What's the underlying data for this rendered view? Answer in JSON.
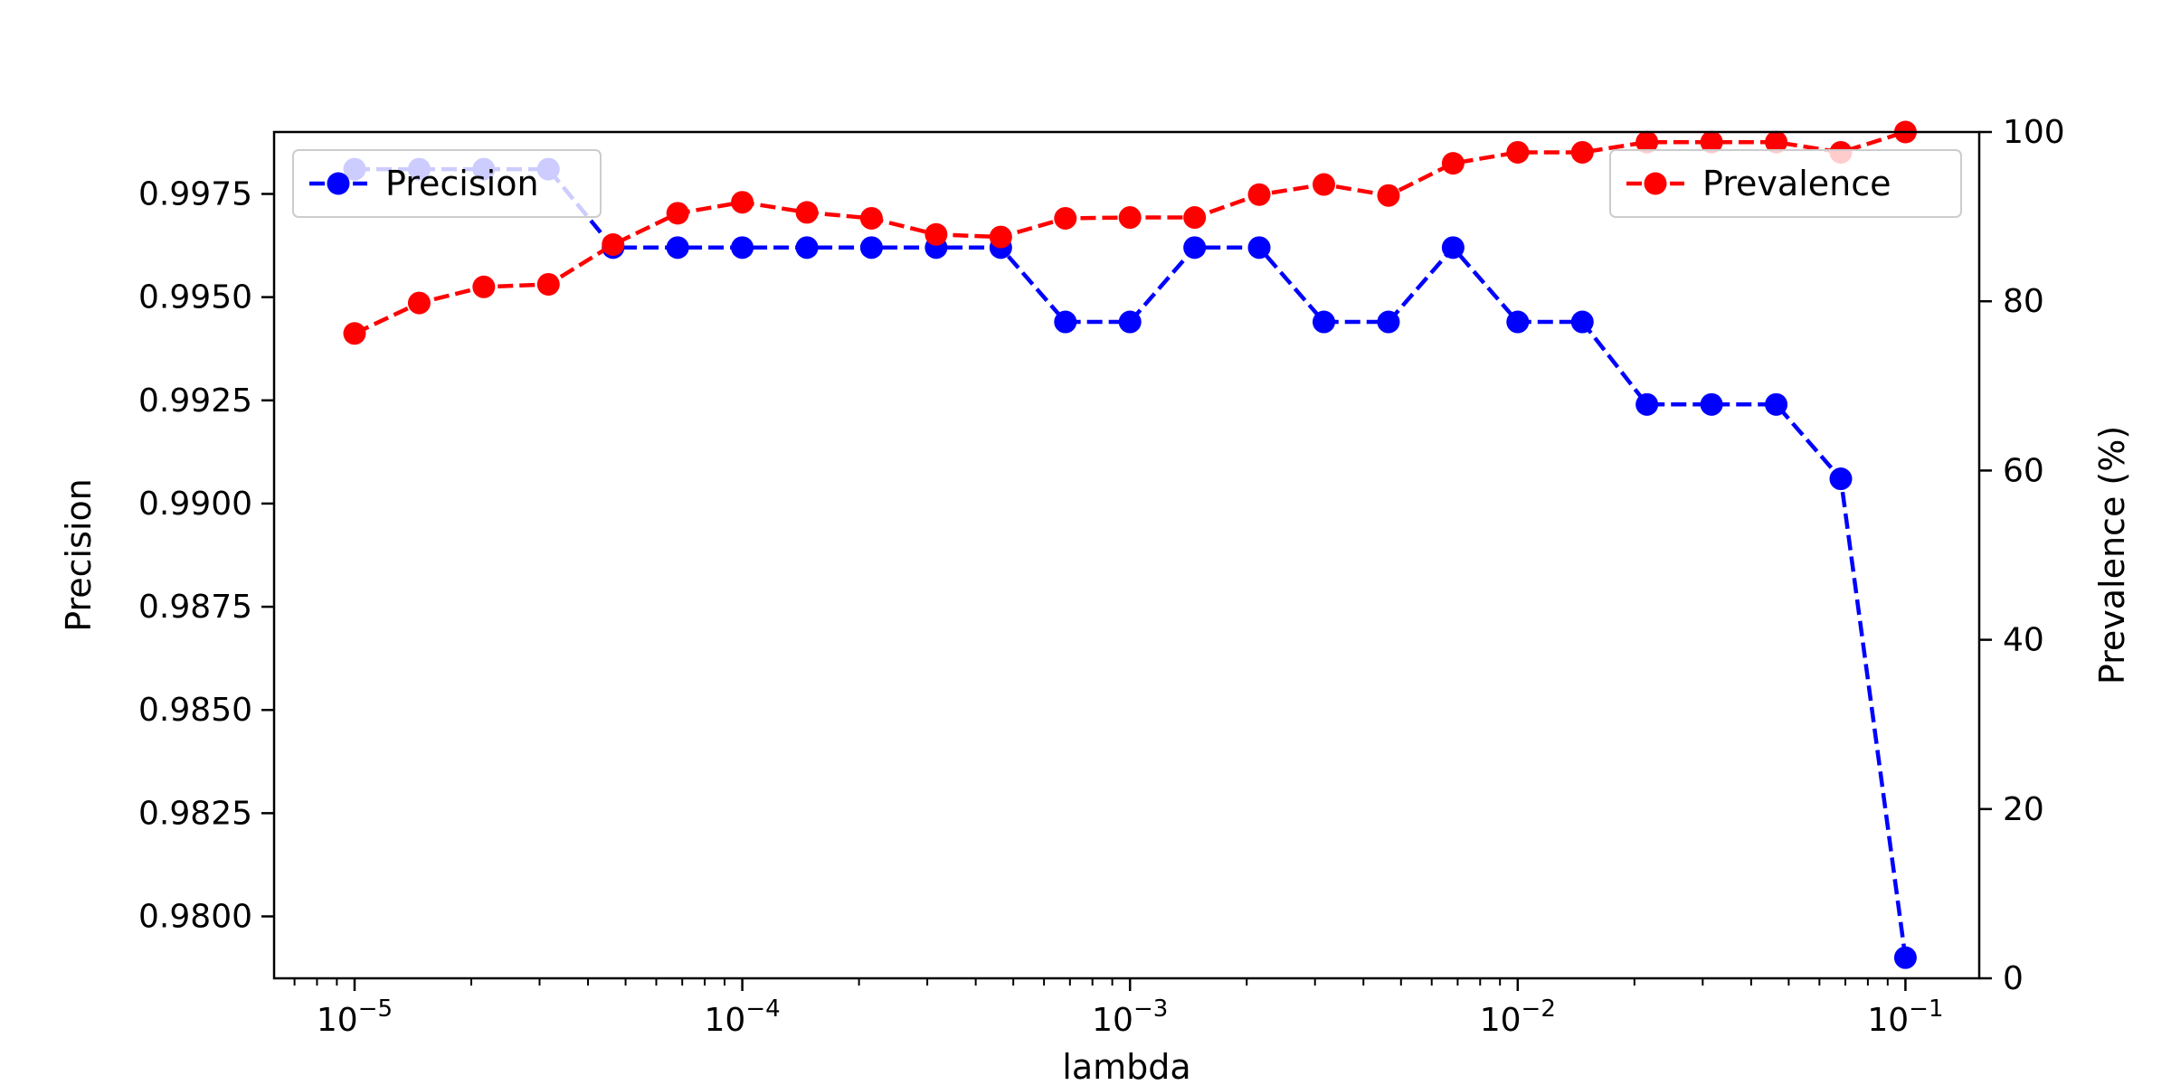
{
  "chart_data": {
    "type": "line",
    "xlabel": "lambda",
    "ylabel": "Precision",
    "y2label": "Prevalence (%)",
    "xscale": "log",
    "xlim": [
      6.2e-06,
      0.155
    ],
    "ylim": [
      0.9785,
      0.999
    ],
    "y2lim": [
      0,
      100
    ],
    "x_ticks": [
      {
        "value": 1e-05,
        "base": "10",
        "exp": "−5"
      },
      {
        "value": 0.0001,
        "base": "10",
        "exp": "−4"
      },
      {
        "value": 0.001,
        "base": "10",
        "exp": "−3"
      },
      {
        "value": 0.01,
        "base": "10",
        "exp": "−2"
      },
      {
        "value": 0.1,
        "base": "10",
        "exp": "−1"
      }
    ],
    "y_ticks": [
      0.98,
      0.9825,
      0.985,
      0.9875,
      0.99,
      0.9925,
      0.995,
      0.9975
    ],
    "y_tick_labels": [
      "0.9800",
      "0.9825",
      "0.9850",
      "0.9875",
      "0.9900",
      "0.9925",
      "0.9950",
      "0.9975"
    ],
    "y2_ticks": [
      0,
      20,
      40,
      60,
      80,
      100
    ],
    "y2_tick_labels": [
      "0",
      "20",
      "40",
      "60",
      "80",
      "100"
    ],
    "x": [
      1e-05,
      1.468e-05,
      2.154e-05,
      3.162e-05,
      4.642e-05,
      6.813e-05,
      0.0001,
      0.0001468,
      0.0002154,
      0.0003162,
      0.0004642,
      0.0006813,
      0.001,
      0.001468,
      0.002154,
      0.003162,
      0.004642,
      0.006813,
      0.01,
      0.01468,
      0.02154,
      0.03162,
      0.04642,
      0.06813,
      0.1
    ],
    "series": [
      {
        "name": "Precision",
        "axis": "left",
        "color": "#0000ff",
        "values": [
          0.9981,
          0.9981,
          0.9981,
          0.9981,
          0.9962,
          0.9962,
          0.9962,
          0.9962,
          0.9962,
          0.9962,
          0.9962,
          0.9944,
          0.9944,
          0.9962,
          0.9962,
          0.9944,
          0.9944,
          0.9962,
          0.9944,
          0.9944,
          0.9924,
          0.9924,
          0.9924,
          0.9906,
          0.979
        ]
      },
      {
        "name": "Prevalence",
        "axis": "right",
        "color": "#ff0000",
        "values": [
          76.2,
          79.8,
          81.7,
          82.0,
          86.7,
          90.4,
          91.7,
          90.5,
          89.8,
          87.9,
          87.6,
          89.8,
          89.9,
          89.9,
          92.6,
          93.8,
          92.5,
          96.3,
          97.6,
          97.6,
          98.8,
          98.8,
          98.8,
          97.6,
          100.0
        ]
      }
    ],
    "legend": [
      {
        "label": "Precision",
        "placement": "upper-left"
      },
      {
        "label": "Prevalence",
        "placement": "upper-right"
      }
    ]
  }
}
